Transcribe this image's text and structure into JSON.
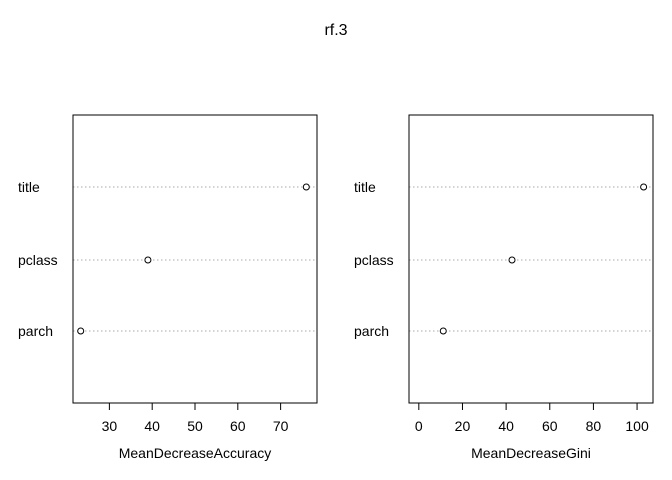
{
  "title": "rf.3",
  "chart_data": [
    {
      "type": "scatter",
      "style": "dotchart",
      "categories": [
        "title",
        "pclass",
        "parch"
      ],
      "values": [
        76,
        39,
        23.3
      ],
      "xlabel": "MeanDecreaseAccuracy",
      "xlim": [
        21.5,
        78.5
      ],
      "xticks": [
        30,
        40,
        50,
        60,
        70
      ],
      "grid": "dotted horizontal lines"
    },
    {
      "type": "scatter",
      "style": "dotchart",
      "categories": [
        "title",
        "pclass",
        "parch"
      ],
      "values": [
        103,
        42.7,
        11.2
      ],
      "xlabel": "MeanDecreaseGini",
      "xlim": [
        -4.5,
        107.3
      ],
      "xticks": [
        0,
        20,
        40,
        60,
        80,
        100
      ],
      "grid": "dotted horizontal lines"
    }
  ]
}
